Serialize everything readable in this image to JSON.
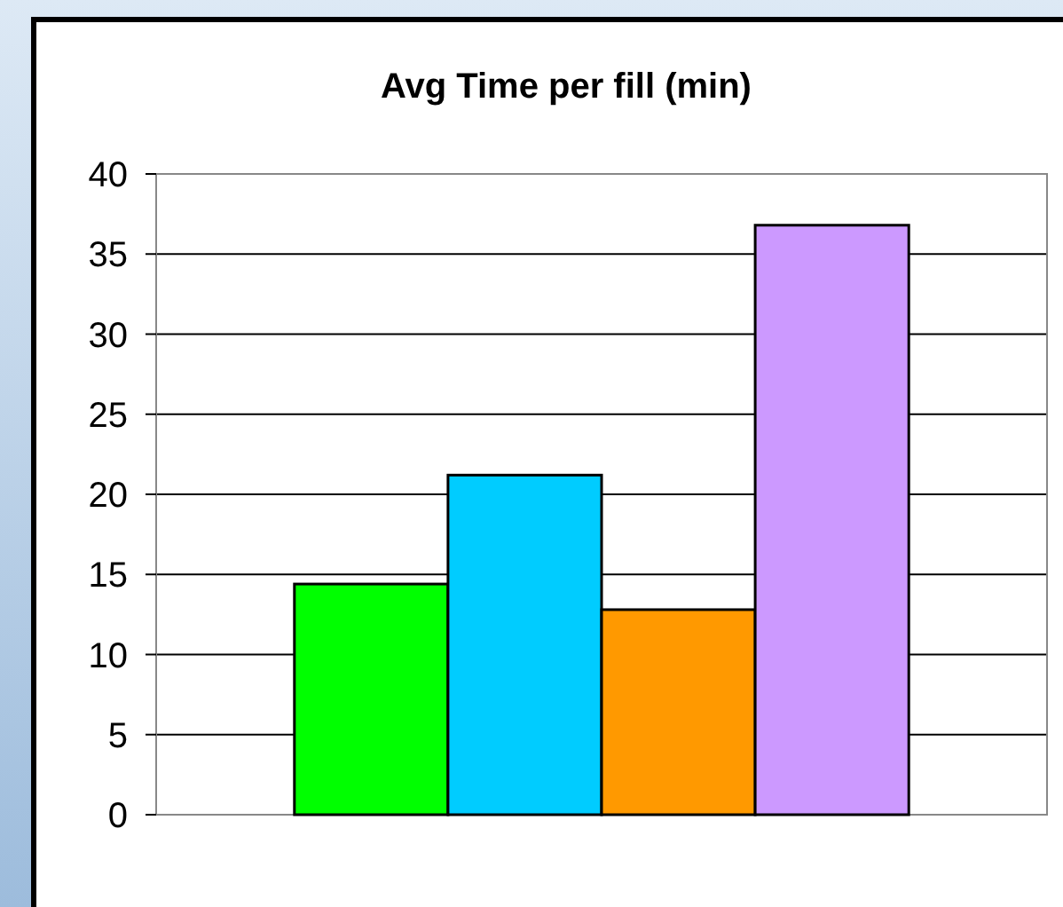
{
  "chart_data": {
    "type": "bar",
    "title": "Avg Time per fill (min)",
    "categories": [
      null,
      null,
      null,
      null
    ],
    "values": [
      14.4,
      21.2,
      12.8,
      36.8
    ],
    "colors": [
      "#00ff00",
      "#00ccff",
      "#ff9900",
      "#cc99ff"
    ],
    "ylim": [
      0,
      40
    ],
    "yticks": [
      0,
      5,
      10,
      15,
      20,
      25,
      30,
      35,
      40
    ],
    "grid": "y"
  }
}
